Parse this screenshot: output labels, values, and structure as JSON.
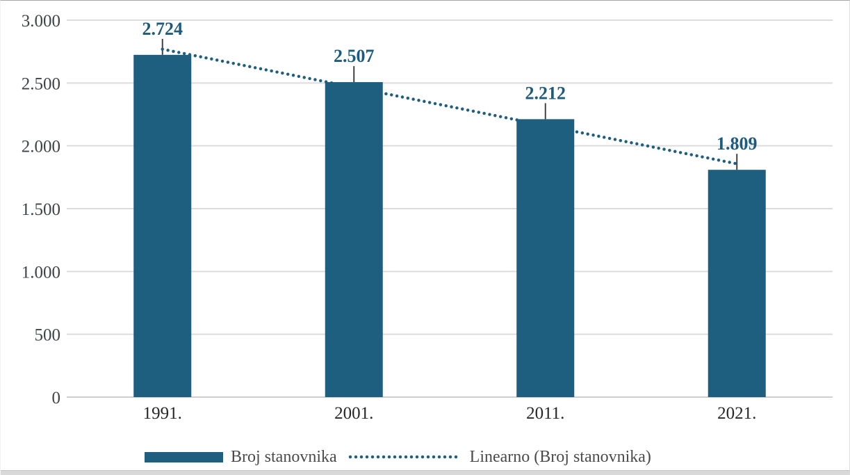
{
  "chart_data": {
    "type": "bar",
    "title": "",
    "xlabel": "",
    "ylabel": "",
    "categories": [
      "1991.",
      "2001.",
      "2011.",
      "2021."
    ],
    "series": [
      {
        "name": "Broj stanovnika",
        "values": [
          2724,
          2507,
          2212,
          1809
        ]
      }
    ],
    "data_labels": [
      "2.724",
      "2.507",
      "2.212",
      "1.809"
    ],
    "trendline": {
      "name": "Linearno (Broj stanovnika)",
      "type": "linear",
      "style": "dotted"
    },
    "ylim": [
      0,
      3000
    ],
    "yticks": [
      0,
      500,
      1000,
      1500,
      2000,
      2500,
      3000
    ],
    "ytick_labels": [
      "0",
      "500",
      "1.000",
      "1.500",
      "2.000",
      "2.500",
      "3.000"
    ],
    "grid": true,
    "legend_position": "bottom",
    "colors": {
      "bar": "#1E5F80",
      "trendline": "#1E5F80",
      "gridline": "#DCDCDC",
      "baseline": "#CFCFCF",
      "data_label": "#1D5B7E",
      "leader_line": "#404040",
      "tick_label": "#3F4347",
      "axis_label": "#262626",
      "legend_text": "#4A4A4A"
    }
  }
}
